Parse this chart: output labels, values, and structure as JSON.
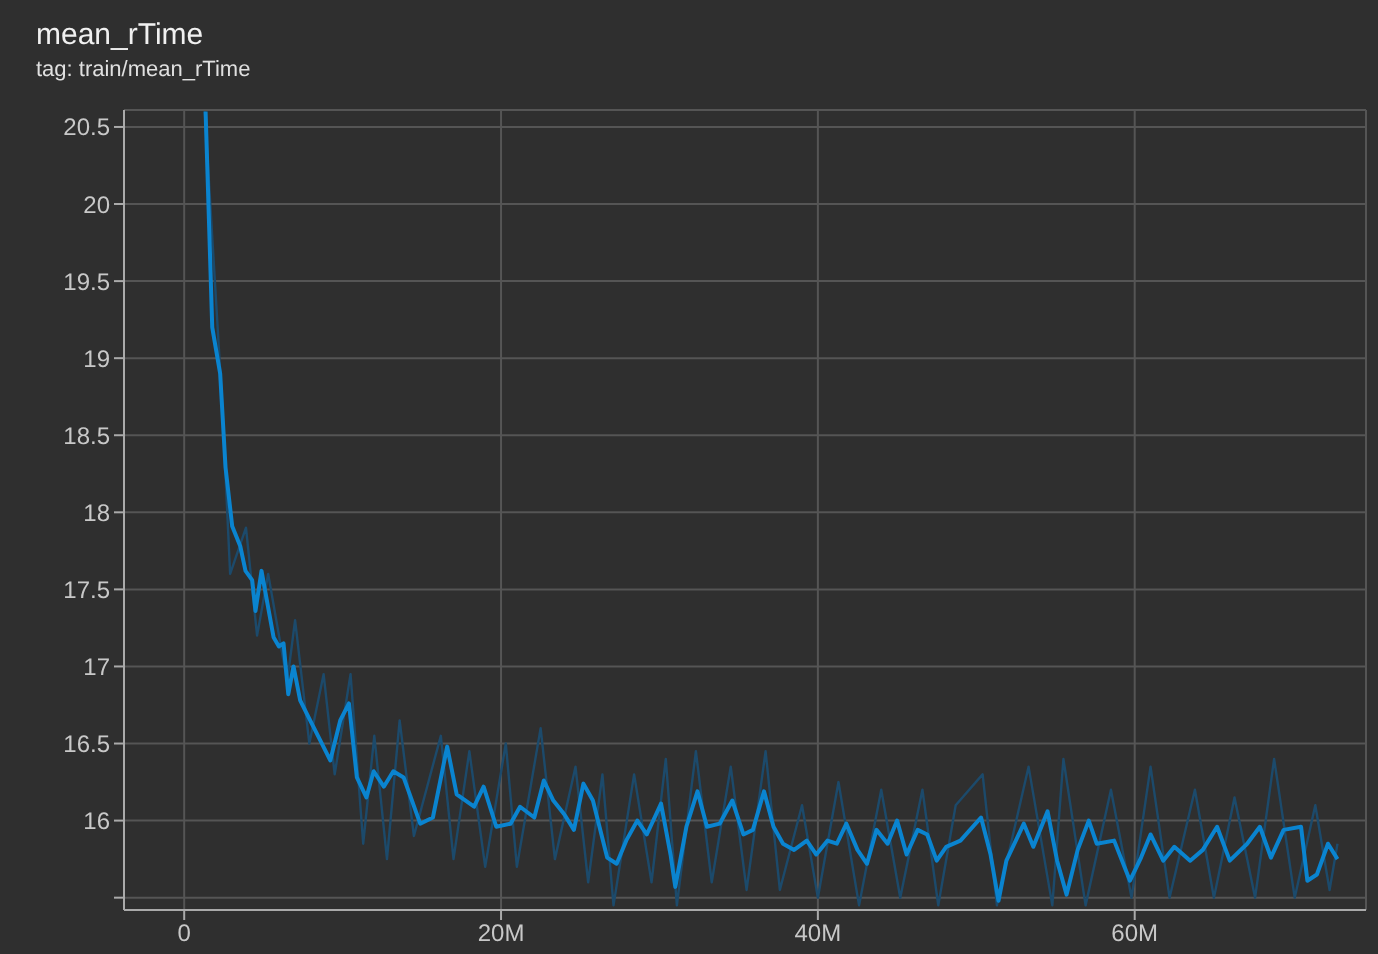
{
  "chart_data": {
    "type": "line",
    "title": "mean_rTime",
    "subtitle": "tag: train/mean_rTime",
    "xlim": [
      -3.8,
      74.6
    ],
    "ylim": [
      15.42,
      20.61
    ],
    "xticks": [
      0,
      {
        "value": 20,
        "label": "20M"
      },
      {
        "value": 40,
        "label": "40M"
      },
      {
        "value": 60,
        "label": "60M"
      }
    ],
    "yticks": [
      {
        "value": 15.5,
        "label": null
      },
      16,
      16.5,
      17,
      17.5,
      18,
      18.5,
      19,
      19.5,
      20,
      20.5
    ],
    "grid": true,
    "marker": "none",
    "line_style": "solid",
    "series": [
      {
        "color": "#1c4a6b",
        "x": [
          1.3,
          2.4,
          2.9,
          3.9,
          4.6,
          5.3,
          6.5,
          7.0,
          7.9,
          8.8,
          9.5,
          10.5,
          11.3,
          12.0,
          12.8,
          13.6,
          14.5,
          16.2,
          17.0,
          18.0,
          19.0,
          20.3,
          21.0,
          22.5,
          23.4,
          24.7,
          25.5,
          26.4,
          27.1,
          28.4,
          29.5,
          30.4,
          31.1,
          32.3,
          33.3,
          34.5,
          35.5,
          36.7,
          37.6,
          39.0,
          40.0,
          41.3,
          42.6,
          44.0,
          45.2,
          46.6,
          47.6,
          48.7,
          50.4,
          51.3,
          53.3,
          54.8,
          55.5,
          56.9,
          58.5,
          59.8,
          61.0,
          62.2,
          63.8,
          65.0,
          66.3,
          67.6,
          68.8,
          70.1,
          71.4,
          72.3,
          72.8
        ],
        "values": [
          20.6,
          18.7,
          17.6,
          17.9,
          17.2,
          17.6,
          16.9,
          17.3,
          16.5,
          16.95,
          16.3,
          16.95,
          15.85,
          16.55,
          15.75,
          16.65,
          15.9,
          16.55,
          15.75,
          16.45,
          15.7,
          16.5,
          15.7,
          16.6,
          15.75,
          16.35,
          15.6,
          16.3,
          15.45,
          16.3,
          15.6,
          16.4,
          15.45,
          16.45,
          15.6,
          16.35,
          15.55,
          16.45,
          15.55,
          16.1,
          15.5,
          16.25,
          15.45,
          16.2,
          15.5,
          16.2,
          15.45,
          16.1,
          16.3,
          15.45,
          16.35,
          15.45,
          16.4,
          15.45,
          16.2,
          15.5,
          16.35,
          15.5,
          16.2,
          15.5,
          16.15,
          15.5,
          16.4,
          15.5,
          16.1,
          15.55,
          15.85
        ]
      },
      {
        "color": "#0a84d0",
        "x": [
          1.35,
          1.77,
          2.27,
          2.61,
          3.03,
          3.54,
          3.87,
          4.29,
          4.5,
          4.88,
          5.64,
          5.98,
          6.27,
          6.57,
          6.9,
          7.32,
          7.95,
          8.59,
          9.22,
          9.85,
          10.4,
          10.9,
          11.5,
          11.96,
          12.6,
          13.2,
          13.85,
          14.9,
          15.7,
          16.6,
          17.2,
          18.3,
          18.9,
          19.7,
          20.6,
          21.2,
          22.1,
          22.7,
          23.3,
          24.0,
          24.6,
          25.2,
          25.8,
          26.7,
          27.3,
          27.9,
          28.6,
          29.2,
          30.1,
          30.7,
          31.0,
          31.7,
          32.4,
          33.0,
          33.8,
          34.6,
          35.3,
          35.9,
          36.6,
          37.2,
          37.8,
          38.5,
          39.3,
          39.9,
          40.6,
          41.2,
          41.8,
          42.5,
          43.1,
          43.7,
          44.4,
          45.0,
          45.6,
          46.3,
          46.9,
          47.5,
          48.1,
          49.0,
          50.3,
          50.9,
          51.4,
          51.9,
          53.0,
          53.6,
          54.5,
          55.1,
          55.7,
          56.4,
          57.1,
          57.6,
          58.7,
          59.7,
          60.4,
          61.0,
          61.8,
          62.5,
          63.5,
          64.3,
          65.2,
          66.0,
          67.1,
          67.9,
          68.6,
          69.4,
          70.5,
          70.9,
          71.5,
          72.2,
          72.8
        ],
        "values": [
          20.6,
          19.2,
          18.9,
          18.29,
          17.91,
          17.78,
          17.62,
          17.56,
          17.36,
          17.62,
          17.19,
          17.13,
          17.15,
          16.82,
          17.0,
          16.78,
          16.65,
          16.52,
          16.39,
          16.65,
          16.76,
          16.28,
          16.15,
          16.32,
          16.22,
          16.32,
          16.28,
          15.98,
          16.02,
          16.48,
          16.17,
          16.09,
          16.22,
          15.96,
          15.98,
          16.09,
          16.02,
          16.26,
          16.13,
          16.04,
          15.94,
          16.24,
          16.13,
          15.76,
          15.72,
          15.87,
          16.0,
          15.91,
          16.11,
          15.78,
          15.57,
          15.96,
          16.19,
          15.96,
          15.98,
          16.13,
          15.91,
          15.94,
          16.19,
          15.96,
          15.85,
          15.81,
          15.87,
          15.78,
          15.87,
          15.85,
          15.98,
          15.81,
          15.72,
          15.94,
          15.85,
          16.0,
          15.78,
          15.94,
          15.91,
          15.74,
          15.83,
          15.87,
          16.02,
          15.78,
          15.48,
          15.74,
          15.98,
          15.83,
          16.06,
          15.74,
          15.52,
          15.81,
          16.0,
          15.85,
          15.87,
          15.61,
          15.76,
          15.91,
          15.74,
          15.83,
          15.74,
          15.81,
          15.96,
          15.74,
          15.85,
          15.96,
          15.76,
          15.94,
          15.96,
          15.61,
          15.65,
          15.85,
          15.75
        ]
      }
    ]
  }
}
